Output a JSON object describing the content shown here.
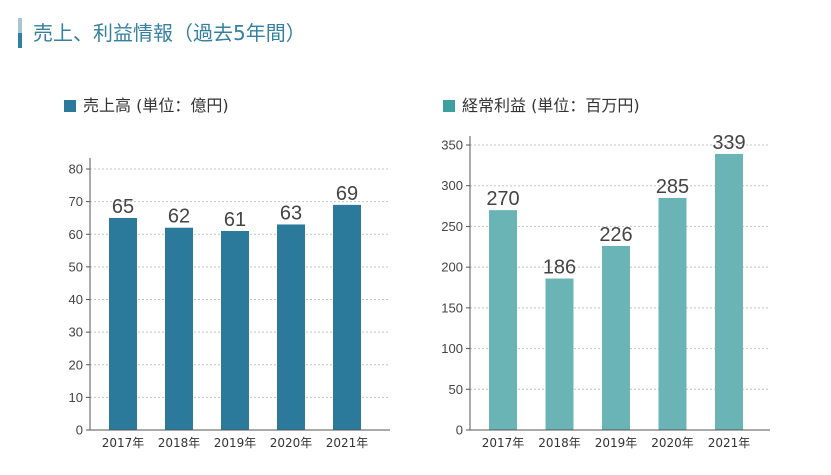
{
  "page": {
    "title": "売上、利益情報（過去5年間）"
  },
  "colors": {
    "title": "#35809f",
    "accent_top": "#a7c5d3",
    "accent_bottom": "#2f7fa0"
  },
  "chart_data": [
    {
      "type": "bar",
      "categories": [
        "2017年",
        "2018年",
        "2019年",
        "2020年",
        "2021年"
      ],
      "series": [
        {
          "name": "売上高 (単位：億円)",
          "values": [
            65,
            62,
            61,
            63,
            69
          ],
          "color": "#2b7a9b",
          "legend_color": "#2b7a9b"
        }
      ],
      "ylim": [
        0,
        80
      ],
      "yticks": [
        0,
        10,
        20,
        30,
        40,
        50,
        60,
        70,
        80
      ],
      "grid": true,
      "legend": "top-left",
      "data_labels": true
    },
    {
      "type": "bar",
      "categories": [
        "2017年",
        "2018年",
        "2019年",
        "2020年",
        "2021年"
      ],
      "series": [
        {
          "name": "経常利益 (単位：百万円)",
          "values": [
            270,
            186,
            226,
            285,
            339
          ],
          "color": "#6ab4b6",
          "legend_color": "#3e9fa0"
        }
      ],
      "ylim": [
        0,
        350
      ],
      "yticks": [
        0,
        50,
        100,
        150,
        200,
        250,
        300,
        350
      ],
      "grid": true,
      "legend": "top-left",
      "data_labels": true
    }
  ]
}
